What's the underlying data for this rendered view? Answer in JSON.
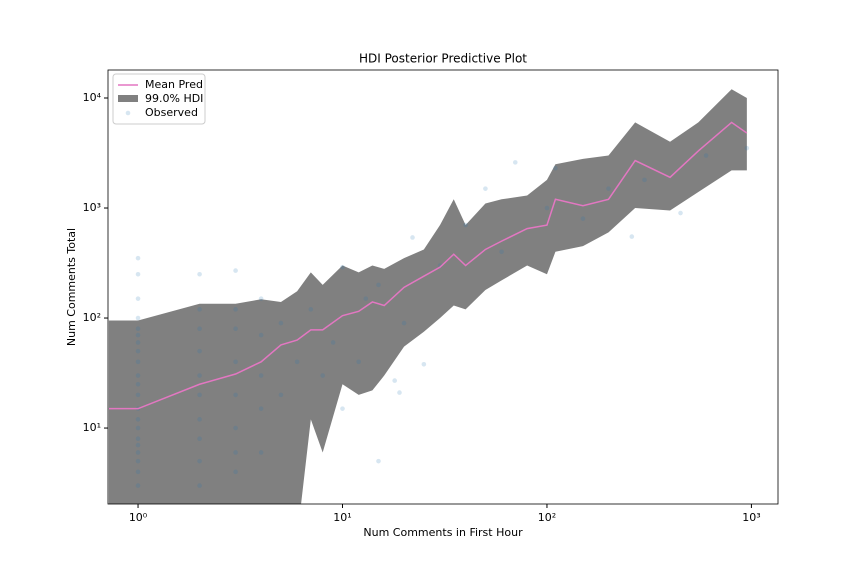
{
  "chart_data": {
    "type": "line",
    "title": "HDI Posterior Predictive Plot",
    "x_label": "Num Comments in First Hour",
    "y_label": "Num Comments Total",
    "log_x": true,
    "log_y": true,
    "xlim": [
      0.713,
      1349
    ],
    "ylim": [
      2.04,
      17970
    ],
    "xticks": [
      {
        "value": 1,
        "label": "10⁰"
      },
      {
        "value": 10,
        "label": "10¹"
      },
      {
        "value": 100,
        "label": "10²"
      },
      {
        "value": 1000,
        "label": "10³"
      }
    ],
    "yticks": [
      {
        "value": 10,
        "label": "10¹"
      },
      {
        "value": 100,
        "label": "10²"
      },
      {
        "value": 1000,
        "label": "10³"
      },
      {
        "value": 10000,
        "label": "10⁴"
      }
    ],
    "legend": "upper left",
    "series": [
      {
        "name": "Mean Pred",
        "color": "#e377c2",
        "x": [
          0.72,
          1,
          2,
          3,
          4,
          5,
          6,
          7,
          8,
          10,
          12,
          14,
          16,
          20,
          25,
          30,
          35,
          40,
          50,
          60,
          80,
          100,
          110,
          150,
          200,
          270,
          400,
          550,
          800,
          950
        ],
        "values": [
          15,
          15,
          25,
          31,
          40,
          57,
          63,
          78,
          78,
          105,
          115,
          140,
          130,
          190,
          240,
          290,
          380,
          300,
          420,
          500,
          650,
          700,
          1200,
          1050,
          1200,
          2700,
          1900,
          3300,
          6000,
          4800
        ]
      }
    ],
    "band": {
      "name": "99.0% HDI",
      "color": "#808080",
      "x": [
        0.72,
        1,
        2,
        3,
        4,
        5,
        6,
        7,
        8,
        10,
        12,
        14,
        16,
        20,
        25,
        30,
        35,
        40,
        50,
        60,
        80,
        100,
        110,
        150,
        200,
        270,
        400,
        550,
        800,
        950
      ],
      "lower": [
        1,
        1,
        1,
        1,
        1,
        1,
        1,
        12,
        6,
        25,
        20,
        22,
        30,
        55,
        75,
        100,
        130,
        120,
        180,
        220,
        300,
        250,
        400,
        450,
        600,
        1000,
        950,
        1400,
        2200,
        2200
      ],
      "upper": [
        95,
        95,
        135,
        135,
        148,
        140,
        175,
        260,
        200,
        300,
        260,
        300,
        280,
        350,
        420,
        700,
        1200,
        700,
        1100,
        1200,
        1300,
        1800,
        2500,
        2800,
        3000,
        6000,
        4000,
        6000,
        12000,
        10000
      ]
    },
    "scatter": {
      "name": "Observed",
      "color": "#1f77b4",
      "x": [
        1,
        1,
        1,
        1,
        1,
        1,
        1,
        1,
        1,
        1,
        1,
        1,
        1,
        1,
        1,
        1,
        1,
        1,
        1,
        1,
        1,
        2,
        2,
        2,
        2,
        2,
        2,
        2,
        2,
        2,
        2,
        3,
        3,
        3,
        3,
        3,
        3,
        3,
        3,
        4,
        4,
        4,
        4,
        4,
        5,
        5,
        6,
        7,
        8,
        9,
        10,
        10,
        12,
        13,
        15,
        15,
        18,
        19,
        20,
        22,
        25,
        30,
        40,
        50,
        60,
        70,
        100,
        110,
        150,
        200,
        260,
        300,
        450,
        600,
        950
      ],
      "values": [
        3,
        4,
        5,
        6,
        7,
        8,
        10,
        12,
        15,
        20,
        25,
        30,
        40,
        50,
        60,
        70,
        80,
        100,
        150,
        250,
        350,
        3,
        5,
        8,
        12,
        20,
        30,
        50,
        80,
        120,
        250,
        4,
        6,
        10,
        20,
        40,
        80,
        120,
        270,
        6,
        15,
        30,
        70,
        150,
        20,
        90,
        40,
        120,
        30,
        60,
        15,
        290,
        40,
        150,
        5,
        200,
        27,
        21,
        90,
        540,
        38,
        300,
        700,
        1500,
        400,
        2600,
        1000,
        2300,
        800,
        1500,
        550,
        1800,
        900,
        3000,
        3500
      ]
    }
  }
}
